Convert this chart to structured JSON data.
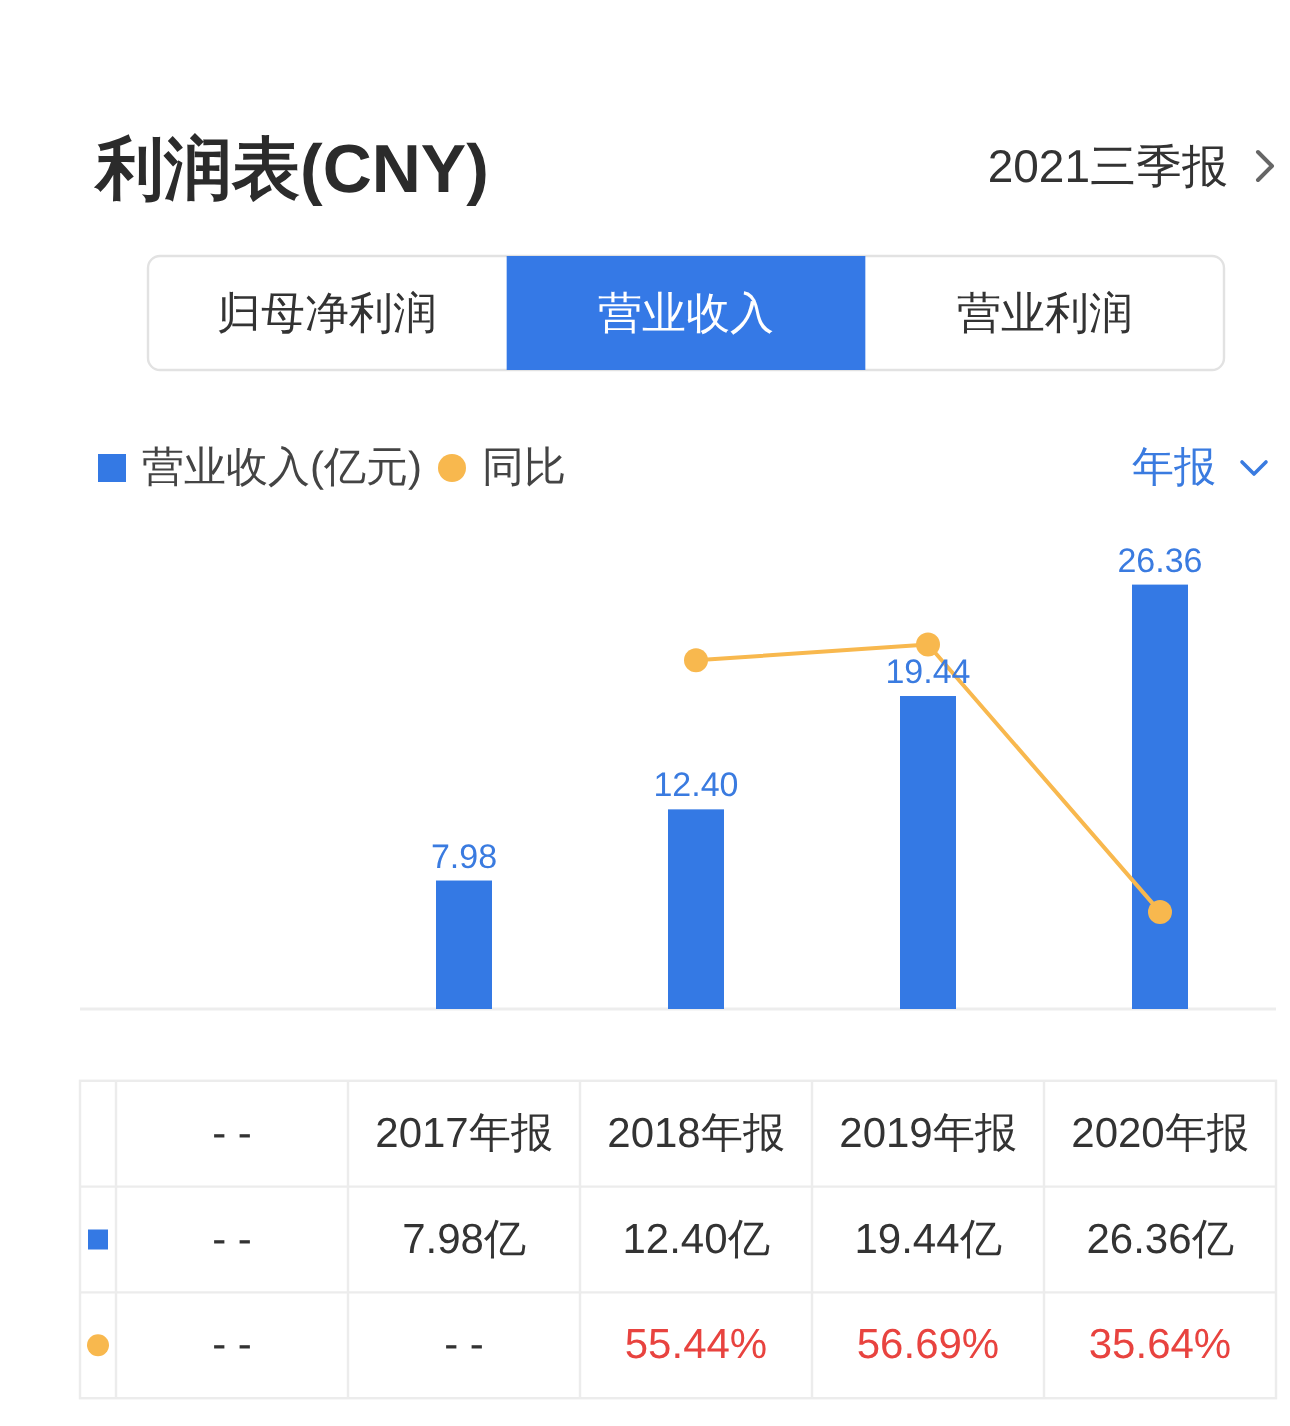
{
  "chart_data": {
    "type": "bar",
    "title": "利润表(CNY)",
    "subtitle": "2021三季报",
    "annotations": [
      "归母净利润",
      "营业收入",
      "营业利润",
      "年报",
      {
        "text": "7.98",
        "x": "2017年报",
        "y": 7.98
      },
      {
        "text": "12.40",
        "x": "2018年报",
        "y": 12.4
      },
      {
        "text": "19.44",
        "x": "2019年报",
        "y": 19.44
      },
      {
        "text": "26.36",
        "x": "2020年报",
        "y": 26.36
      }
    ],
    "categories": [
      "- -",
      "2017年报",
      "2018年报",
      "2019年报",
      "2020年报"
    ],
    "series": [
      {
        "name": "营业收入(亿元)",
        "color": "#3479e4",
        "values": [
          null,
          7.98,
          12.4,
          19.44,
          26.36
        ],
        "value_labels": [
          "- -",
          "7.98亿",
          "12.40亿",
          "19.44亿",
          "26.36亿"
        ]
      },
      {
        "name": "同比",
        "type": "line",
        "axis": "y2",
        "color": "#f8b84e",
        "marker": "circle",
        "values": [
          null,
          null,
          55.44,
          56.69,
          35.64
        ],
        "value_labels": [
          "- -",
          "- -",
          "55.44%",
          "56.69%",
          "35.64%"
        ]
      }
    ],
    "tick_labels": "x",
    "legend": "top left"
  }
}
